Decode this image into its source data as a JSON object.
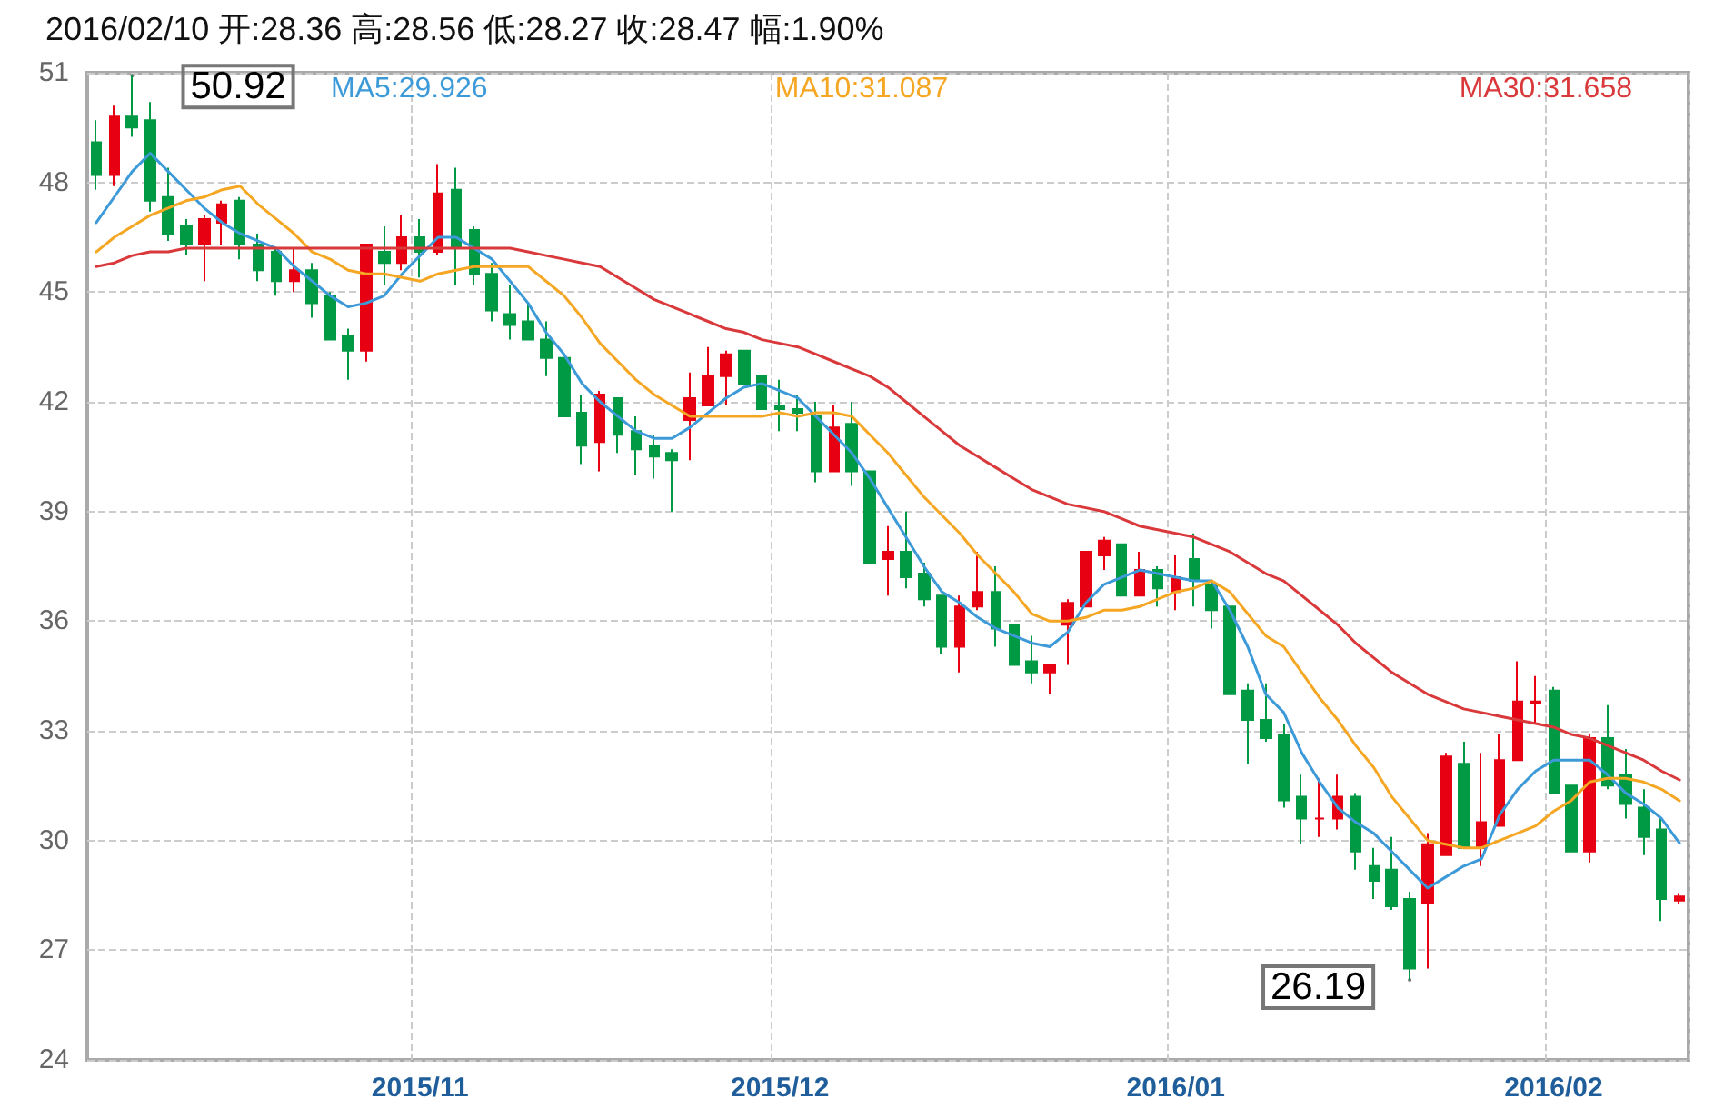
{
  "chart_data": {
    "type": "candlestick",
    "title": "2016/02/10 开:28.36 高:28.56 低:28.27 收:28.47 幅:1.90%",
    "categories": [
      null,
      null,
      null,
      null,
      null,
      null,
      null,
      null,
      null,
      null,
      null,
      null,
      null,
      null,
      null,
      null,
      null,
      null,
      "2015/11",
      null,
      null,
      null,
      null,
      null,
      null,
      null,
      null,
      null,
      null,
      null,
      null,
      null,
      null,
      null,
      null,
      null,
      null,
      null,
      "2015/12",
      null,
      null,
      null,
      null,
      null,
      null,
      null,
      null,
      null,
      null,
      null,
      null,
      null,
      null,
      null,
      null,
      null,
      null,
      null,
      null,
      null,
      "2016/01",
      null,
      null,
      null,
      null,
      null,
      null,
      null,
      null,
      null,
      null,
      null,
      null,
      null,
      null,
      null,
      null,
      null,
      null,
      null,
      null,
      "2016/02",
      null,
      null,
      null,
      null,
      null,
      null,
      null
    ],
    "ohlc": [
      [
        49.1,
        49.7,
        47.8,
        48.2
      ],
      [
        48.2,
        50.1,
        47.9,
        49.8
      ],
      [
        49.8,
        50.92,
        49.25,
        49.5
      ],
      [
        49.7,
        50.2,
        47.2,
        47.5
      ],
      [
        47.6,
        48.4,
        46.4,
        46.6
      ],
      [
        46.8,
        47.0,
        46.0,
        46.3
      ],
      [
        46.3,
        47.1,
        45.3,
        47.0
      ],
      [
        46.9,
        47.5,
        46.3,
        47.4
      ],
      [
        47.5,
        47.6,
        45.9,
        46.3
      ],
      [
        46.3,
        46.6,
        45.3,
        45.6
      ],
      [
        46.1,
        46.2,
        44.9,
        45.3
      ],
      [
        45.3,
        46.2,
        45.0,
        45.6
      ],
      [
        45.6,
        45.8,
        44.3,
        44.7
      ],
      [
        44.9,
        45.0,
        43.7,
        43.7
      ],
      [
        43.8,
        44.0,
        42.6,
        43.4
      ],
      [
        43.4,
        46.3,
        43.1,
        46.3
      ],
      [
        46.1,
        46.8,
        45.2,
        45.8
      ],
      [
        45.8,
        47.1,
        45.6,
        46.5
      ],
      [
        46.5,
        47.0,
        45.4,
        46.1
      ],
      [
        46.1,
        48.5,
        46.0,
        47.7
      ],
      [
        47.8,
        48.4,
        45.2,
        46.2
      ],
      [
        46.7,
        46.8,
        45.2,
        45.5
      ],
      [
        45.5,
        45.8,
        44.2,
        44.5
      ],
      [
        44.4,
        45.2,
        43.7,
        44.1
      ],
      [
        44.2,
        44.7,
        43.7,
        43.7
      ],
      [
        43.7,
        44.2,
        42.7,
        43.2
      ],
      [
        43.2,
        43.2,
        41.6,
        41.6
      ],
      [
        41.7,
        42.2,
        40.3,
        40.8
      ],
      [
        40.9,
        42.3,
        40.1,
        42.2
      ],
      [
        42.1,
        42.1,
        40.6,
        41.1
      ],
      [
        41.2,
        41.6,
        40.0,
        40.7
      ],
      [
        40.8,
        41.1,
        39.9,
        40.5
      ],
      [
        40.6,
        40.7,
        39.0,
        40.4
      ],
      [
        41.5,
        42.8,
        40.4,
        42.1
      ],
      [
        41.9,
        43.5,
        41.9,
        42.7
      ],
      [
        42.7,
        43.4,
        41.9,
        43.3
      ],
      [
        43.4,
        43.4,
        42.5,
        42.5
      ],
      [
        42.7,
        42.7,
        41.8,
        41.8
      ],
      [
        41.9,
        42.6,
        41.2,
        41.8
      ],
      [
        41.8,
        42.2,
        41.2,
        41.7
      ],
      [
        41.6,
        42.0,
        39.8,
        40.1
      ],
      [
        40.1,
        41.9,
        40.1,
        41.3
      ],
      [
        41.4,
        42.0,
        39.7,
        40.1
      ],
      [
        40.1,
        40.1,
        37.6,
        37.6
      ],
      [
        37.7,
        38.6,
        36.7,
        37.9
      ],
      [
        37.9,
        39.0,
        36.9,
        37.2
      ],
      [
        37.3,
        37.6,
        36.4,
        36.6
      ],
      [
        36.7,
        36.7,
        35.1,
        35.3
      ],
      [
        35.3,
        36.7,
        34.6,
        36.4
      ],
      [
        36.4,
        37.9,
        36.3,
        36.8
      ],
      [
        36.8,
        37.5,
        35.3,
        35.8
      ],
      [
        35.9,
        35.9,
        34.8,
        34.8
      ],
      [
        34.9,
        35.6,
        34.3,
        34.6
      ],
      [
        34.6,
        34.8,
        34.0,
        34.8
      ],
      [
        35.9,
        36.6,
        34.8,
        36.5
      ],
      [
        36.4,
        37.9,
        36.4,
        37.9
      ],
      [
        37.8,
        38.3,
        37.4,
        38.2
      ],
      [
        38.1,
        38.1,
        36.7,
        36.7
      ],
      [
        36.7,
        37.9,
        36.7,
        37.4
      ],
      [
        37.4,
        37.5,
        36.4,
        36.9
      ],
      [
        36.8,
        37.8,
        36.3,
        37.2
      ],
      [
        37.7,
        38.4,
        36.4,
        37.1
      ],
      [
        37.0,
        37.1,
        35.8,
        36.3
      ],
      [
        36.4,
        36.4,
        34.0,
        34.0
      ],
      [
        34.1,
        34.3,
        32.1,
        33.3
      ],
      [
        33.3,
        34.3,
        32.7,
        32.8
      ],
      [
        32.9,
        33.2,
        30.9,
        31.1
      ],
      [
        31.2,
        31.8,
        29.9,
        30.6
      ],
      [
        30.6,
        31.7,
        30.1,
        30.6
      ],
      [
        30.6,
        31.8,
        30.3,
        31.2
      ],
      [
        31.2,
        31.3,
        29.2,
        29.7
      ],
      [
        29.3,
        29.8,
        28.4,
        28.9
      ],
      [
        29.2,
        30.1,
        28.1,
        28.2
      ],
      [
        28.4,
        28.6,
        26.19,
        26.5
      ],
      [
        28.3,
        30.2,
        26.5,
        29.9
      ],
      [
        29.6,
        32.4,
        29.6,
        32.3
      ],
      [
        32.1,
        32.7,
        29.8,
        29.8
      ],
      [
        29.8,
        32.4,
        29.3,
        30.5
      ],
      [
        30.4,
        32.9,
        30.4,
        32.2
      ],
      [
        32.2,
        34.9,
        32.2,
        33.8
      ],
      [
        33.75,
        34.5,
        33.2,
        33.8
      ],
      [
        34.1,
        34.2,
        31.3,
        31.3
      ],
      [
        31.5,
        31.5,
        29.7,
        29.7
      ],
      [
        29.7,
        32.9,
        29.4,
        32.8
      ],
      [
        32.8,
        33.7,
        31.4,
        31.5
      ],
      [
        31.8,
        32.5,
        30.6,
        31.0
      ],
      [
        30.9,
        31.4,
        29.6,
        30.1
      ],
      [
        30.3,
        30.6,
        27.8,
        28.4
      ],
      [
        28.36,
        28.56,
        28.27,
        28.47
      ]
    ],
    "series": [
      {
        "type": "line",
        "name": "MA5:29.926",
        "color": "#3d9ad9",
        "values": [
          46.9,
          47.6,
          48.3,
          48.8,
          48.3,
          47.8,
          47.3,
          46.9,
          46.6,
          46.4,
          46.2,
          45.7,
          45.3,
          44.9,
          44.6,
          44.7,
          44.9,
          45.5,
          46.0,
          46.5,
          46.5,
          46.2,
          45.9,
          45.3,
          44.7,
          43.9,
          43.3,
          42.5,
          42.0,
          41.6,
          41.2,
          41.0,
          41.0,
          41.3,
          41.7,
          42.1,
          42.4,
          42.5,
          42.3,
          42.1,
          41.6,
          41.1,
          40.6,
          39.9,
          39.1,
          38.3,
          37.5,
          36.8,
          36.5,
          36.1,
          35.8,
          35.6,
          35.4,
          35.3,
          35.7,
          36.5,
          37.0,
          37.2,
          37.4,
          37.3,
          37.2,
          37.1,
          37.1,
          36.3,
          35.3,
          34.0,
          33.5,
          32.4,
          31.6,
          30.9,
          30.5,
          30.2,
          29.7,
          29.2,
          28.7,
          29.0,
          29.3,
          29.5,
          30.7,
          31.4,
          31.9,
          32.2,
          32.2,
          32.2,
          31.8,
          31.3,
          31.0,
          30.6,
          29.926
        ]
      },
      {
        "type": "line",
        "name": "MA10:31.087",
        "color": "#f5a623",
        "values": [
          46.1,
          46.5,
          46.8,
          47.1,
          47.3,
          47.5,
          47.6,
          47.8,
          47.9,
          47.4,
          47.0,
          46.6,
          46.1,
          45.9,
          45.6,
          45.5,
          45.5,
          45.4,
          45.3,
          45.5,
          45.6,
          45.7,
          45.7,
          45.7,
          45.7,
          45.3,
          44.9,
          44.3,
          43.6,
          43.1,
          42.6,
          42.2,
          41.9,
          41.6,
          41.6,
          41.6,
          41.6,
          41.6,
          41.7,
          41.6,
          41.7,
          41.7,
          41.6,
          41.1,
          40.6,
          40.0,
          39.4,
          38.9,
          38.4,
          37.8,
          37.3,
          36.8,
          36.2,
          36.0,
          36.0,
          36.1,
          36.3,
          36.3,
          36.4,
          36.6,
          36.8,
          36.9,
          37.1,
          36.8,
          36.2,
          35.6,
          35.3,
          34.6,
          33.9,
          33.3,
          32.6,
          32.0,
          31.2,
          30.6,
          30.0,
          29.9,
          29.8,
          29.8,
          30.0,
          30.2,
          30.4,
          30.8,
          31.1,
          31.6,
          31.7,
          31.7,
          31.6,
          31.4,
          31.087
        ]
      },
      {
        "type": "line",
        "name": "MA30:31.658",
        "color": "#d9393b",
        "values": [
          45.7,
          45.8,
          46.0,
          46.1,
          46.1,
          46.2,
          46.2,
          46.2,
          46.2,
          46.2,
          46.2,
          46.2,
          46.2,
          46.2,
          46.2,
          46.2,
          46.2,
          46.2,
          46.2,
          46.2,
          46.2,
          46.2,
          46.2,
          46.2,
          46.1,
          46.0,
          45.9,
          45.8,
          45.7,
          45.4,
          45.1,
          44.8,
          44.6,
          44.4,
          44.2,
          44.0,
          43.9,
          43.7,
          43.6,
          43.5,
          43.3,
          43.1,
          42.9,
          42.7,
          42.4,
          42.0,
          41.6,
          41.2,
          40.8,
          40.5,
          40.2,
          39.9,
          39.6,
          39.4,
          39.2,
          39.1,
          39.0,
          38.8,
          38.6,
          38.5,
          38.4,
          38.3,
          38.1,
          37.9,
          37.6,
          37.3,
          37.1,
          36.7,
          36.3,
          35.9,
          35.4,
          35.0,
          34.6,
          34.3,
          34.0,
          33.8,
          33.6,
          33.5,
          33.4,
          33.3,
          33.2,
          33.1,
          32.9,
          32.8,
          32.6,
          32.4,
          32.2,
          31.9,
          31.658
        ]
      }
    ],
    "ylim": [
      24,
      51
    ],
    "yticks": [
      24,
      27,
      30,
      33,
      36,
      39,
      42,
      45,
      48,
      51
    ],
    "grid": true,
    "legend": "top",
    "marker": "none",
    "annotations": [
      "50.92",
      "26.19"
    ]
  }
}
